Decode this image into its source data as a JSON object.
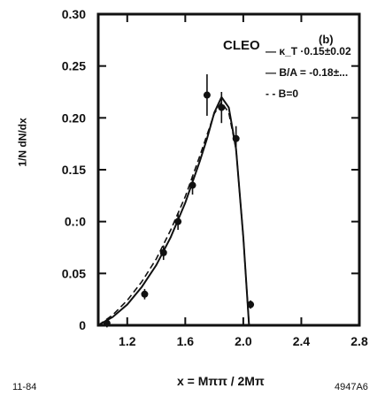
{
  "chart_data": {
    "type": "scatter",
    "title": "CLEO",
    "panel_label": "(b)",
    "ylabel": "1/N dN/dx",
    "xlabel": "x = Mππ / 2Mπ",
    "xlim": [
      1.0,
      2.8
    ],
    "ylim": [
      0,
      0.3
    ],
    "x_ticks": [
      "1.2",
      "1.6",
      "2.0",
      "2.4",
      "2.8"
    ],
    "y_ticks": [
      "0",
      "0.05",
      "0.10",
      "0.15",
      "0.20",
      "0.25",
      "0.30"
    ],
    "y_tick_labels": [
      "0",
      "0.05",
      "0.:0",
      "0.15",
      "0.20",
      "0.25",
      "0.30"
    ],
    "legend_position": "top-right",
    "legend": [
      {
        "label": "— κ_T ·0.15±0.02",
        "style": "solid"
      },
      {
        "label": "— B/A = -0.18±...",
        "style": "dashed"
      },
      {
        "label": "- - B=0",
        "style": "dashed"
      }
    ],
    "series": [
      {
        "name": "data",
        "x": [
          1.06,
          1.32,
          1.45,
          1.55,
          1.65,
          1.75,
          1.85,
          1.95,
          2.05
        ],
        "y": [
          0.002,
          0.03,
          0.07,
          0.1,
          0.135,
          0.222,
          0.21,
          0.18,
          0.02
        ],
        "yerr": [
          0.004,
          0.005,
          0.007,
          0.008,
          0.009,
          0.02,
          0.015,
          0.012,
          0.004
        ]
      },
      {
        "name": "fit (κ_T)",
        "x": [
          1.0,
          1.1,
          1.2,
          1.3,
          1.4,
          1.5,
          1.6,
          1.7,
          1.75,
          1.8,
          1.85,
          1.9,
          1.95,
          2.0,
          2.04
        ],
        "y": [
          0,
          0.008,
          0.02,
          0.037,
          0.058,
          0.085,
          0.118,
          0.158,
          0.18,
          0.205,
          0.22,
          0.21,
          0.17,
          0.085,
          0.0
        ]
      },
      {
        "name": "B=0",
        "x": [
          1.0,
          1.1,
          1.2,
          1.3,
          1.4,
          1.5,
          1.6,
          1.7,
          1.8,
          1.85,
          1.9,
          1.95,
          2.0,
          2.04
        ],
        "y": [
          0,
          0.01,
          0.024,
          0.042,
          0.064,
          0.092,
          0.124,
          0.163,
          0.204,
          0.215,
          0.205,
          0.17,
          0.085,
          0.0
        ]
      }
    ]
  },
  "footer": {
    "left_code": "11-84",
    "right_code": "4947A6"
  }
}
